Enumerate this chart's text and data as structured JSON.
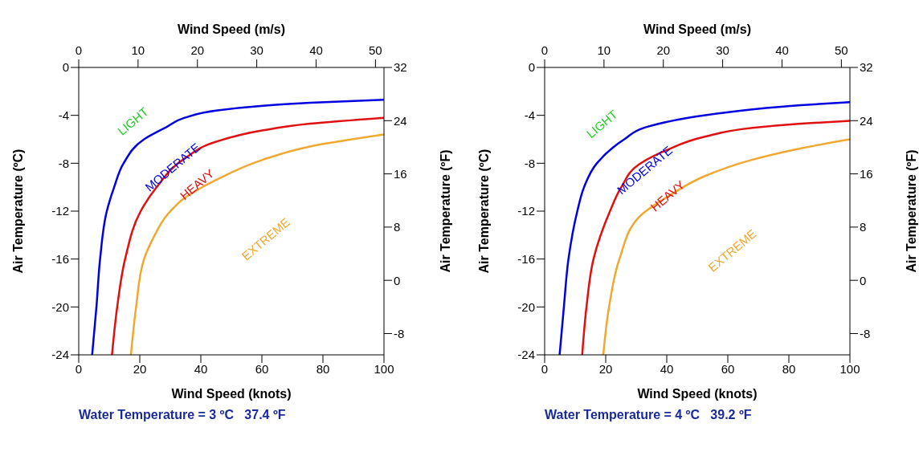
{
  "chart_data": [
    {
      "type": "line",
      "xlabel": "Wind Speed (knots)",
      "x2label": "Wind Speed (m/s)",
      "ylabel": "Air Temperature (ºC)",
      "y2label": "Air Temperature (ºF)",
      "xlim": [
        0,
        100
      ],
      "xticks": [
        0,
        20,
        40,
        60,
        80,
        100
      ],
      "x2lim": [
        0,
        51.44
      ],
      "x2ticks": [
        0,
        10,
        20,
        30,
        40,
        50
      ],
      "ylim": [
        -24,
        0
      ],
      "yticks": [
        -24,
        -20,
        -16,
        -12,
        -8,
        -4,
        0
      ],
      "y2lim": [
        -11.2,
        32
      ],
      "y2ticks": [
        -8,
        0,
        8,
        16,
        24,
        32
      ],
      "grid": false,
      "legend": false,
      "marker": "none",
      "line_style": "solid",
      "series": [
        {
          "color": "#0000e0",
          "x": [
            4.4,
            5.8,
            7.0,
            9.2,
            11.6,
            14.7,
            21.4,
            28.6,
            34.7,
            45,
            60.4,
            75.8,
            100
          ],
          "values": [
            -24,
            -20,
            -16,
            -12,
            -10,
            -8,
            -6,
            -5,
            -4.2,
            -3.6,
            -3.2,
            -2.95,
            -2.7
          ]
        },
        {
          "color": "#e01010",
          "x": [
            10.9,
            12.6,
            15.2,
            20.3,
            25.5,
            34.7,
            45,
            60.4,
            75.8,
            100
          ],
          "values": [
            -24,
            -20,
            -16,
            -12,
            -10,
            -7.6,
            -6.2,
            -5.25,
            -4.7,
            -4.2
          ]
        },
        {
          "color": "#f0a830",
          "x": [
            17.1,
            18.8,
            21.4,
            24.5,
            29,
            34.7,
            45,
            60.4,
            75.8,
            100
          ],
          "values": [
            -24,
            -20,
            -16,
            -14.2,
            -12.3,
            -10.9,
            -9.4,
            -7.7,
            -6.6,
            -5.6
          ]
        }
      ],
      "annotations": [
        "LIGHT",
        "MODERATE",
        "HEAVY",
        "EXTREME",
        "Water Temperature = 3 ºC   37.4 ºF"
      ]
    },
    {
      "type": "line",
      "xlabel": "Wind Speed (knots)",
      "x2label": "Wind Speed (m/s)",
      "ylabel": "Air Temperature (ºC)",
      "y2label": "Air Temperature (ºF)",
      "xlim": [
        0,
        100
      ],
      "xticks": [
        0,
        20,
        40,
        60,
        80,
        100
      ],
      "x2lim": [
        0,
        51.44
      ],
      "x2ticks": [
        0,
        10,
        20,
        30,
        40,
        50
      ],
      "ylim": [
        -24,
        0
      ],
      "yticks": [
        -24,
        -20,
        -16,
        -12,
        -8,
        -4,
        0
      ],
      "y2lim": [
        -11.2,
        32
      ],
      "y2ticks": [
        -8,
        0,
        8,
        16,
        24,
        32
      ],
      "grid": false,
      "legend": false,
      "marker": "none",
      "line_style": "solid",
      "series": [
        {
          "color": "#0000e0",
          "x": [
            4.9,
            6.3,
            7.8,
            10.7,
            12.9,
            17.1,
            26.1,
            33,
            52.2,
            68.1,
            84,
            100
          ],
          "values": [
            -24,
            -20,
            -16,
            -12,
            -10,
            -8,
            -6,
            -5,
            -4.0,
            -3.5,
            -3.15,
            -2.9
          ]
        },
        {
          "color": "#e01010",
          "x": [
            12.3,
            13.7,
            16,
            21.4,
            25.1,
            30.9,
            40,
            52.2,
            68.1,
            84,
            100
          ],
          "values": [
            -24,
            -20,
            -16,
            -12,
            -10,
            -8.1,
            -6.9,
            -5.8,
            -5.05,
            -4.7,
            -4.45
          ]
        },
        {
          "color": "#f0a830",
          "x": [
            19.2,
            21.1,
            24.5,
            30.9,
            41.5,
            52.2,
            68.1,
            84,
            100
          ],
          "values": [
            -24,
            -20,
            -16,
            -12.5,
            -10.6,
            -9.1,
            -7.7,
            -6.75,
            -6.0
          ]
        }
      ],
      "annotations": [
        "LIGHT",
        "MODERATE",
        "HEAVY",
        "EXTREME",
        "Water Temperature = 4 ºC   39.2 ºF"
      ]
    }
  ]
}
